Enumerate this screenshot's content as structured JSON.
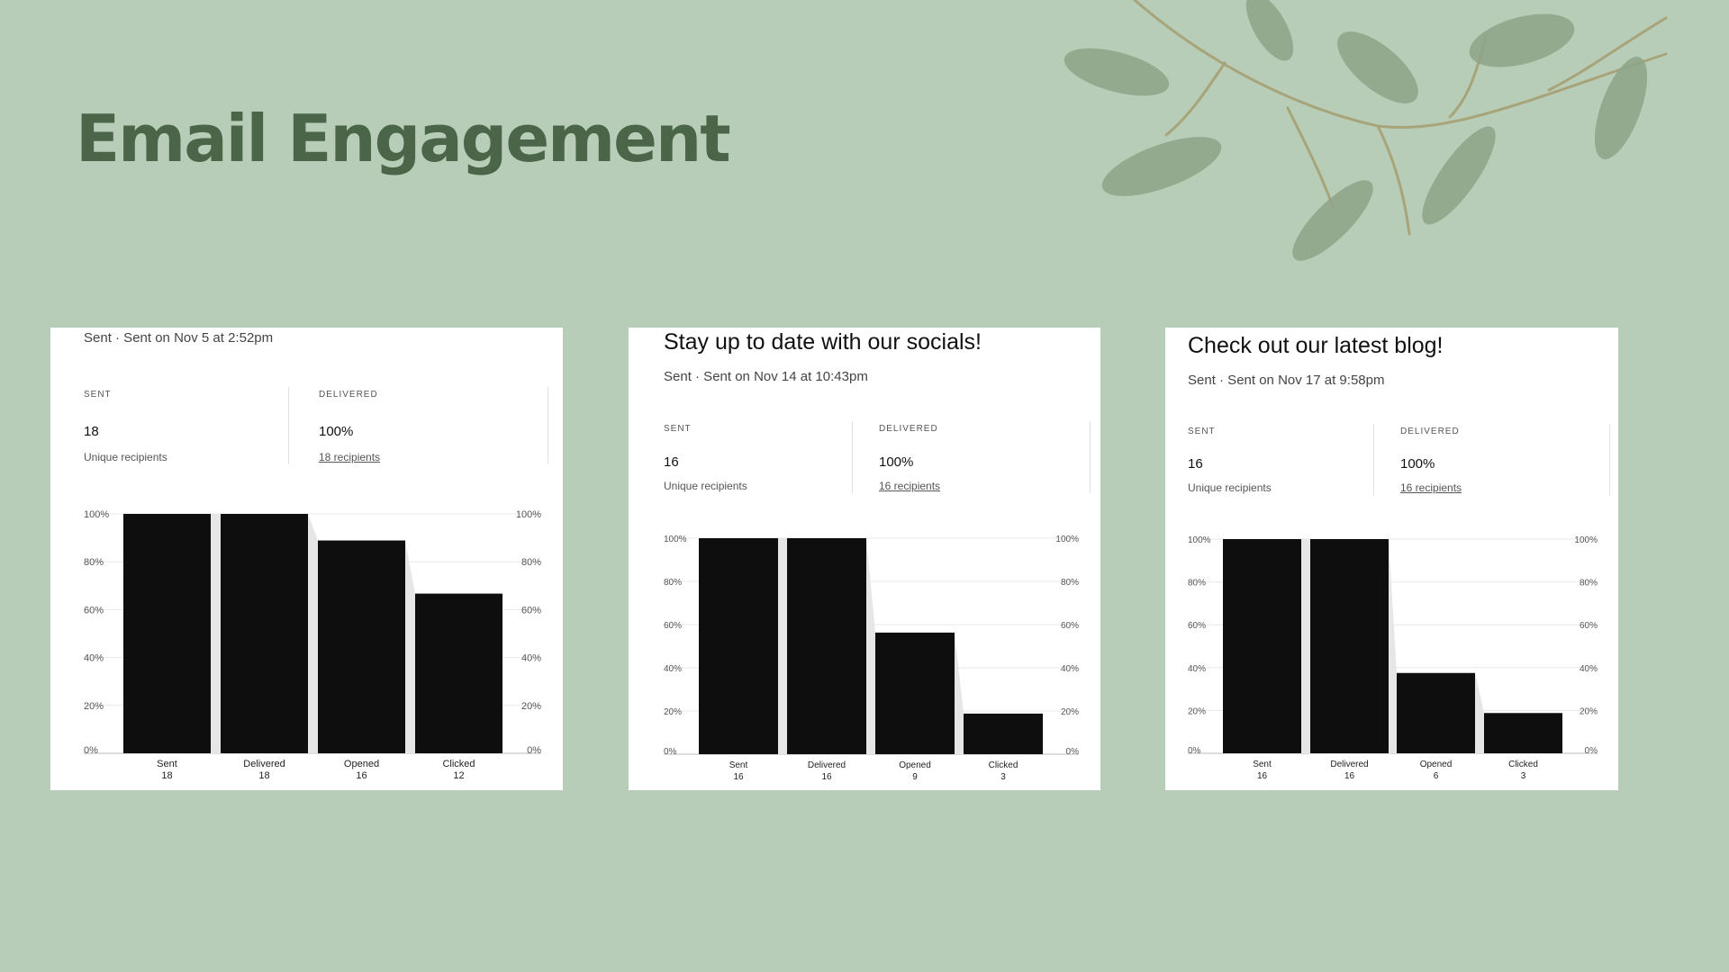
{
  "page": {
    "title": "Email Engagement"
  },
  "colors": {
    "background": "#b7cdb7",
    "title": "#4b6549",
    "bar": "#0e0e0e",
    "funnel": "#e6e6e6"
  },
  "emails": [
    {
      "title": "",
      "subtitle": "Sent · Sent on Nov 5 at 2:52pm",
      "sent": {
        "label": "SENT",
        "value": "18",
        "note": "Unique recipients"
      },
      "delivered": {
        "label": "DELIVERED",
        "value": "100%",
        "note": "18 recipients"
      }
    },
    {
      "title": "Stay up to date with our socials!",
      "subtitle": "Sent · Sent on Nov 14 at 10:43pm",
      "sent": {
        "label": "SENT",
        "value": "16",
        "note": "Unique recipients"
      },
      "delivered": {
        "label": "DELIVERED",
        "value": "100%",
        "note": "16 recipients"
      }
    },
    {
      "title": "Check out our latest blog!",
      "subtitle": "Sent · Sent on Nov 17 at 9:58pm",
      "sent": {
        "label": "SENT",
        "value": "16",
        "note": "Unique recipients"
      },
      "delivered": {
        "label": "DELIVERED",
        "value": "100%",
        "note": "16 recipients"
      }
    }
  ],
  "chart_data": [
    {
      "type": "bar",
      "categories": [
        "Sent",
        "Delivered",
        "Opened",
        "Clicked"
      ],
      "values": [
        18,
        18,
        16,
        12
      ],
      "percent": [
        100,
        100,
        88.9,
        66.7
      ],
      "ylim": [
        0,
        100
      ],
      "yticks": [
        "0%",
        "20%",
        "40%",
        "60%",
        "80%",
        "100%"
      ],
      "grid": true
    },
    {
      "type": "bar",
      "categories": [
        "Sent",
        "Delivered",
        "Opened",
        "Clicked"
      ],
      "values": [
        16,
        16,
        9,
        3
      ],
      "percent": [
        100,
        100,
        56.3,
        18.8
      ],
      "ylim": [
        0,
        100
      ],
      "yticks": [
        "0%",
        "20%",
        "40%",
        "60%",
        "80%",
        "100%"
      ],
      "grid": true
    },
    {
      "type": "bar",
      "categories": [
        "Sent",
        "Delivered",
        "Opened",
        "Clicked"
      ],
      "values": [
        16,
        16,
        6,
        3
      ],
      "percent": [
        100,
        100,
        37.5,
        18.8
      ],
      "ylim": [
        0,
        100
      ],
      "yticks": [
        "0%",
        "20%",
        "40%",
        "60%",
        "80%",
        "100%"
      ],
      "grid": true
    }
  ]
}
